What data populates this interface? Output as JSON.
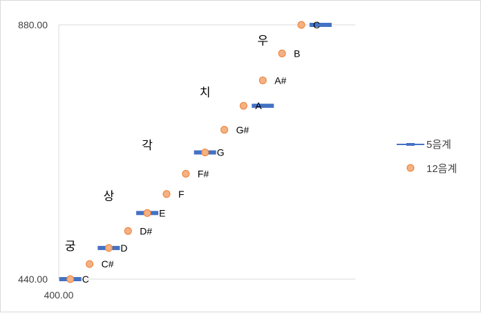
{
  "chart_data": {
    "type": "scatter",
    "title": "",
    "xlabel": "",
    "ylabel": "",
    "x_range": [
      400,
      785
    ],
    "y_range": [
      440,
      880
    ],
    "x_tick_labels": [
      "400.00"
    ],
    "y_tick_labels": [
      "440.00",
      "880.00"
    ],
    "grid": {
      "horizontal": true,
      "vertical": false
    },
    "legend": {
      "position": "right",
      "entries": [
        "5음계",
        "12음계"
      ]
    },
    "colors": {
      "pentatonic": "#4472c4",
      "chromatic_fill": "#f4b183",
      "chromatic_edge": "#ed7d31",
      "gridline": "#d9d9d9"
    },
    "series": [
      {
        "name": "5음계",
        "marker": "dash",
        "points": [
          {
            "x": 415,
            "y": 440.0
          },
          {
            "x": 465,
            "y": 493.9
          },
          {
            "x": 515,
            "y": 554.4
          },
          {
            "x": 590,
            "y": 659.3
          },
          {
            "x": 665,
            "y": 740.0
          },
          {
            "x": 740,
            "y": 880.0
          }
        ]
      },
      {
        "name": "12음계",
        "marker": "circle",
        "points": [
          {
            "x": 415,
            "y": 440.0
          },
          {
            "x": 440,
            "y": 466.2
          },
          {
            "x": 465,
            "y": 493.9
          },
          {
            "x": 490,
            "y": 523.3
          },
          {
            "x": 515,
            "y": 554.4
          },
          {
            "x": 540,
            "y": 587.3
          },
          {
            "x": 565,
            "y": 622.3
          },
          {
            "x": 590,
            "y": 659.3
          },
          {
            "x": 615,
            "y": 698.5
          },
          {
            "x": 640,
            "y": 740.0
          },
          {
            "x": 665,
            "y": 784.0
          },
          {
            "x": 690,
            "y": 830.6
          },
          {
            "x": 715,
            "y": 880.0
          }
        ]
      }
    ],
    "note_labels": [
      "C",
      "C#",
      "D",
      "D#",
      "E",
      "F",
      "F#",
      "G",
      "G#",
      "A",
      "A#",
      "B",
      "C"
    ],
    "scale_labels": [
      {
        "text": "궁",
        "x": 415,
        "y": 490
      },
      {
        "text": "상",
        "x": 465,
        "y": 577
      },
      {
        "text": "각",
        "x": 515,
        "y": 665
      },
      {
        "text": "치",
        "x": 590,
        "y": 756
      },
      {
        "text": "우",
        "x": 665,
        "y": 846
      }
    ]
  }
}
